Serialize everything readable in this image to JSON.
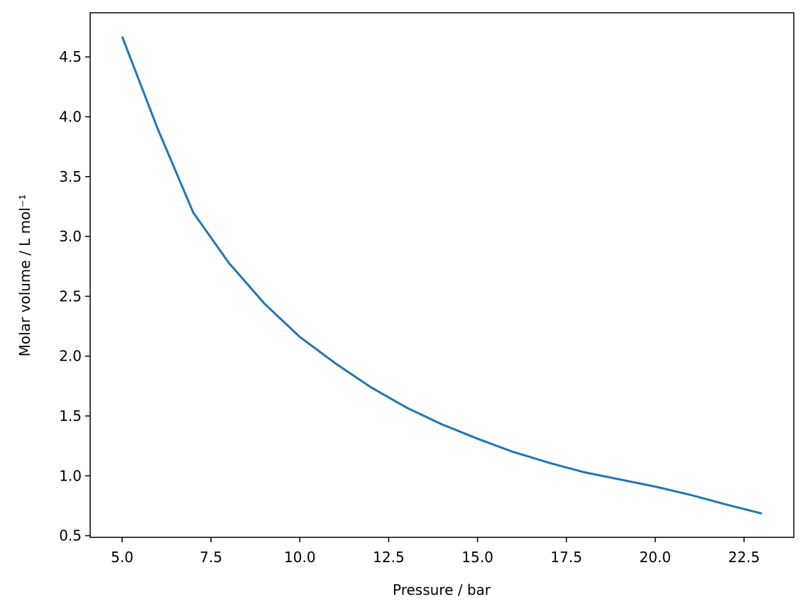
{
  "chart_data": {
    "type": "line",
    "x_label": "Pressure / bar",
    "y_label": "Molar volume / L mol⁻¹",
    "x": [
      5,
      6,
      7,
      8,
      9,
      10,
      11,
      12,
      13,
      14,
      15,
      16,
      17,
      18,
      19,
      20,
      21,
      22,
      23
    ],
    "values": [
      4.67,
      3.9,
      3.2,
      2.78,
      2.44,
      2.16,
      1.94,
      1.74,
      1.57,
      1.43,
      1.31,
      1.2,
      1.11,
      1.03,
      0.97,
      0.91,
      0.84,
      0.76,
      0.685
    ],
    "color": "#1f77b4",
    "xlim": [
      4.1,
      23.9
    ],
    "ylim": [
      0.486,
      4.869
    ],
    "xticks": [
      {
        "value": 5,
        "label": "5.0"
      },
      7.5,
      {
        "value": 10,
        "label": "10.0"
      },
      12.5,
      {
        "value": 15,
        "label": "15.0"
      },
      17.5,
      {
        "value": 20,
        "label": "20.0"
      },
      22.5
    ],
    "yticks": [
      0.5,
      {
        "value": 1,
        "label": "1.0"
      },
      1.5,
      {
        "value": 2,
        "label": "2.0"
      },
      2.5,
      {
        "value": 3,
        "label": "3.0"
      },
      3.5,
      {
        "value": 4,
        "label": "4.0"
      },
      4.5
    ],
    "grid": false
  }
}
